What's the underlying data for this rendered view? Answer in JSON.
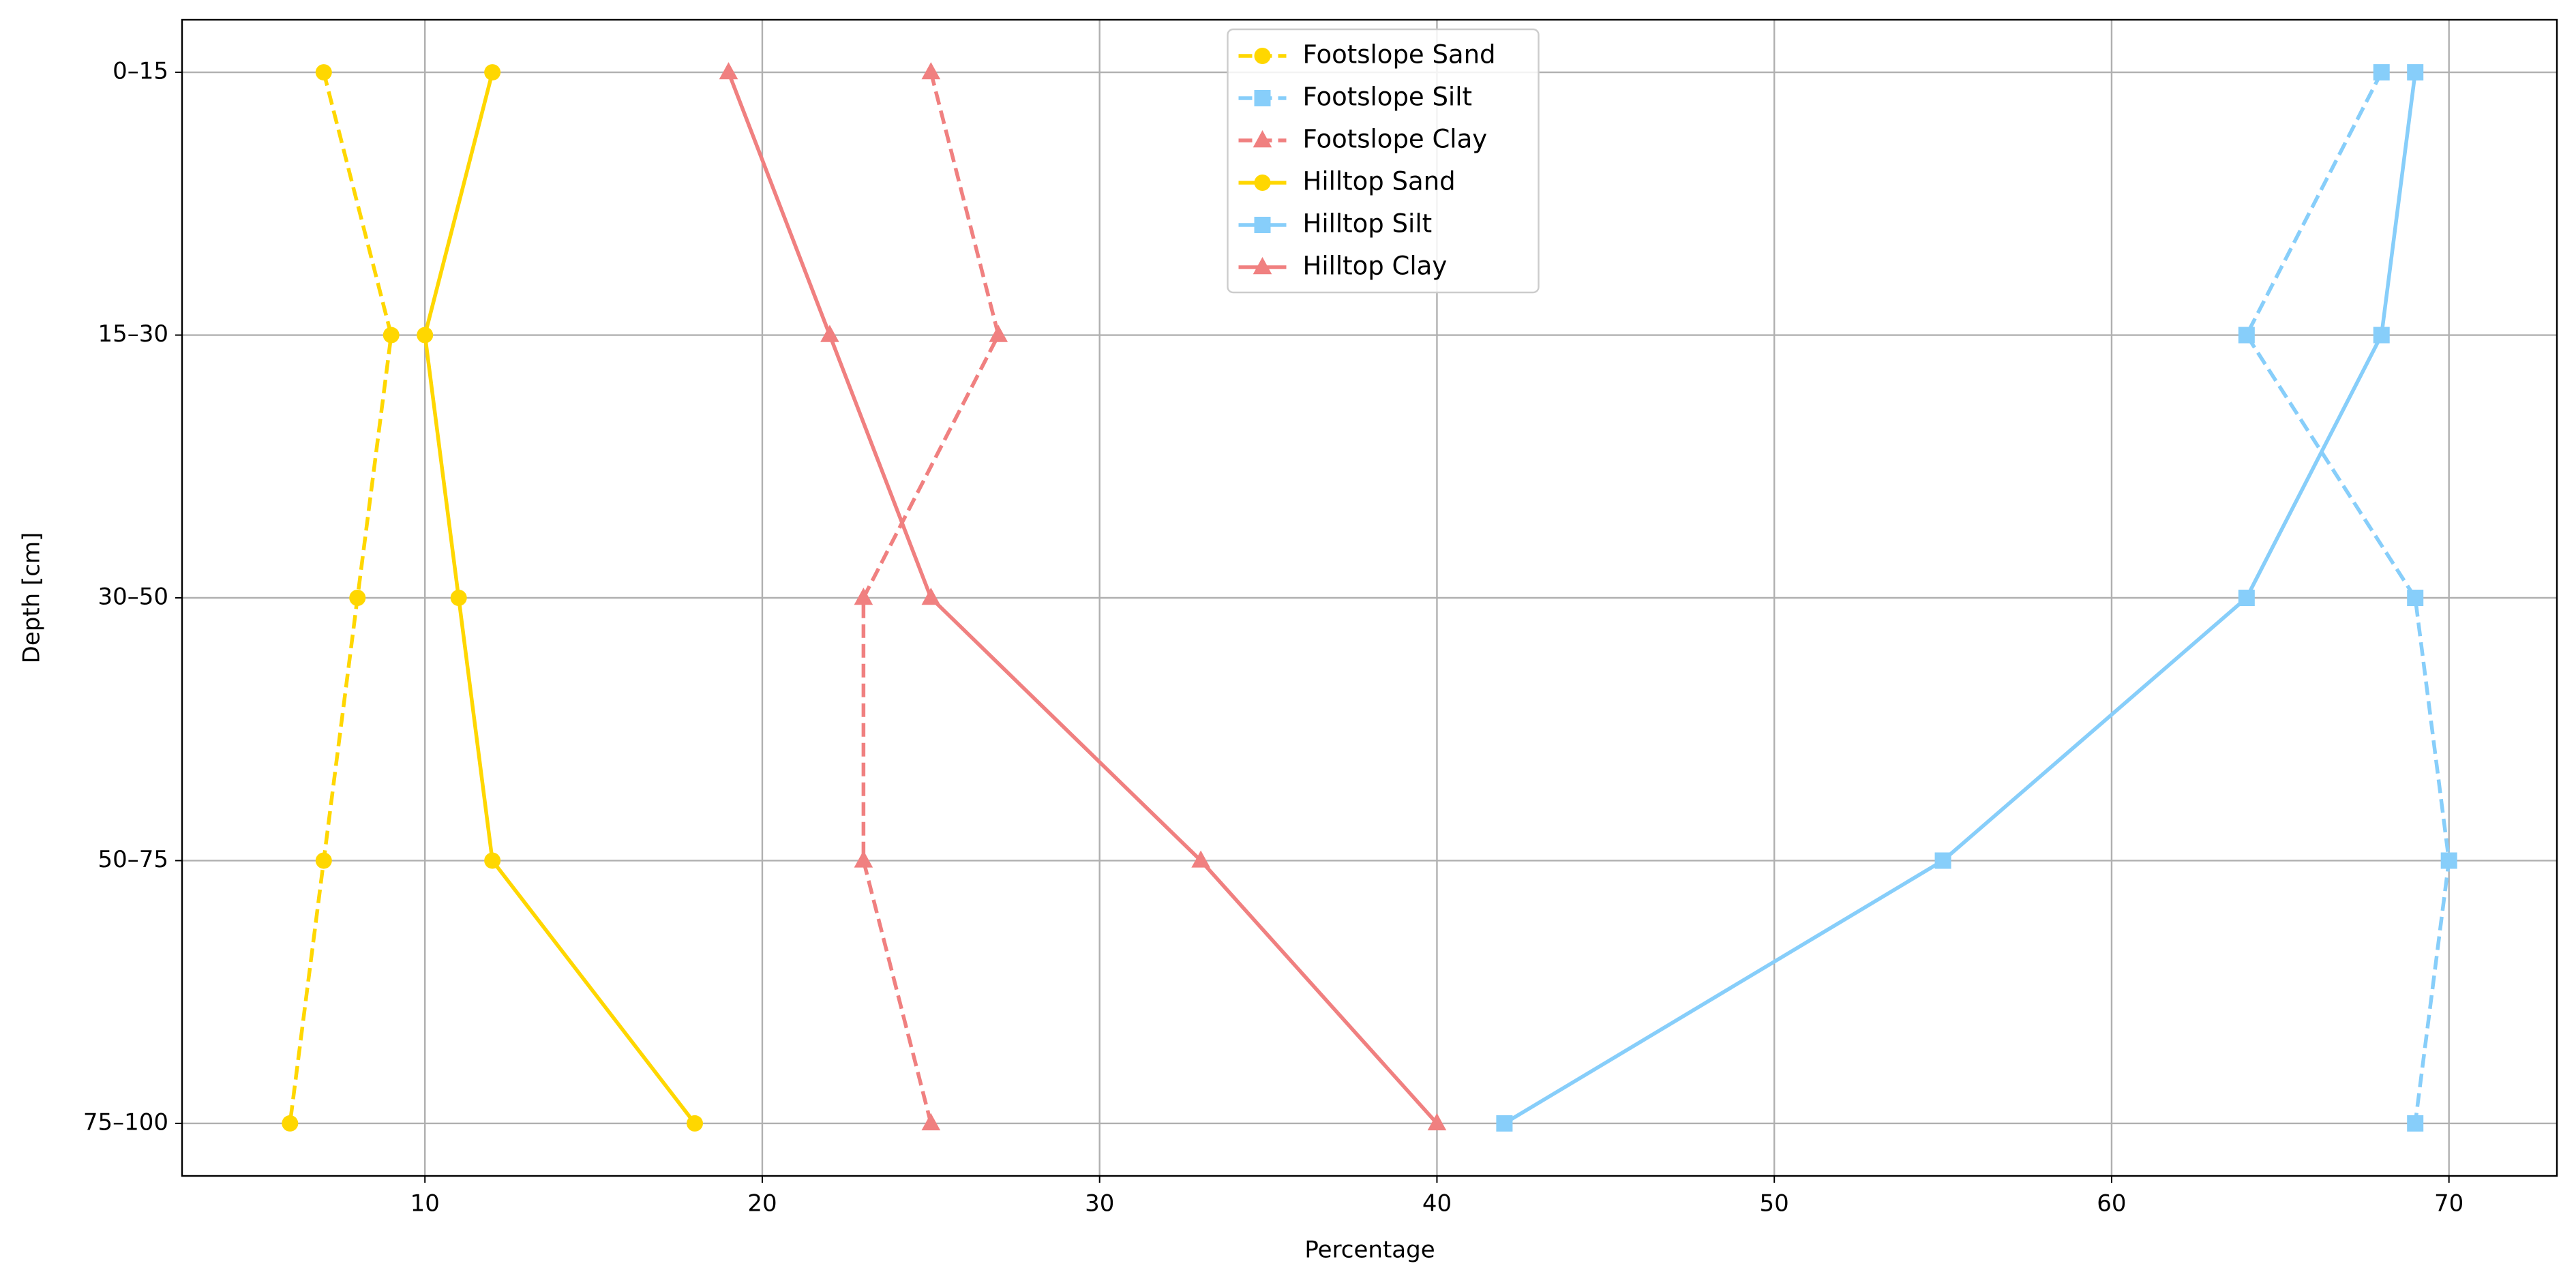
{
  "chart_data": {
    "type": "line",
    "xlabel": "Percentage",
    "ylabel": "Depth [cm]",
    "categories": [
      "0–15",
      "15–30",
      "30–50",
      "50–75",
      "75–100"
    ],
    "xlim": [
      2.8,
      73.2
    ],
    "xticks": [
      10,
      20,
      30,
      40,
      50,
      60,
      70
    ],
    "grid": true,
    "legend": "upper center",
    "series": [
      {
        "name": "Footslope Sand",
        "color": "#FFD700",
        "linestyle": "dashed",
        "marker": "circle",
        "values": [
          7,
          9,
          8,
          7,
          6
        ]
      },
      {
        "name": "Footslope Silt",
        "color": "#87CEFA",
        "linestyle": "dashed",
        "marker": "square",
        "values": [
          68,
          64,
          69,
          70,
          69
        ]
      },
      {
        "name": "Footslope Clay",
        "color": "#F08080",
        "linestyle": "dashed",
        "marker": "triangle",
        "values": [
          25,
          27,
          23,
          23,
          25
        ]
      },
      {
        "name": "Hilltop Sand",
        "color": "#FFD700",
        "linestyle": "solid",
        "marker": "circle",
        "values": [
          12,
          10,
          11,
          12,
          18
        ]
      },
      {
        "name": "Hilltop Silt",
        "color": "#87CEFA",
        "linestyle": "solid",
        "marker": "square",
        "values": [
          69,
          68,
          64,
          55,
          42
        ]
      },
      {
        "name": "Hilltop Clay",
        "color": "#F08080",
        "linestyle": "solid",
        "marker": "triangle",
        "values": [
          19,
          22,
          25,
          33,
          40
        ]
      }
    ]
  }
}
